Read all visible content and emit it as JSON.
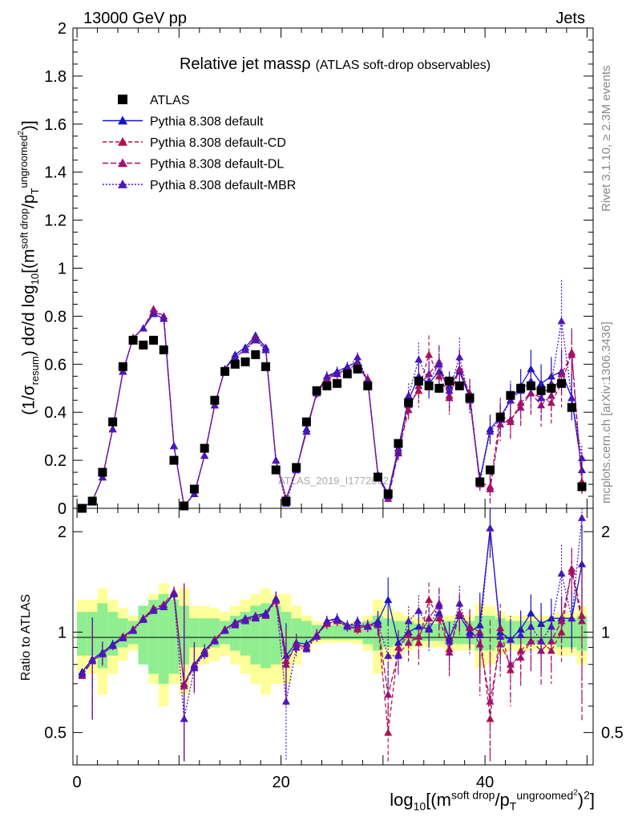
{
  "header": {
    "left": "13000 GeV pp",
    "right": "Jets"
  },
  "title": {
    "main": "Relative jet massρ",
    "sub": "(ATLAS soft-drop observables)"
  },
  "side_text": {
    "rivet": "Rivet 3.1.10, ≥ 2.3M events",
    "mcplots": "mcplots.cern.ch [arXiv:1306.3436]"
  },
  "watermark": "ATLAS_2019_I1772062",
  "axes": {
    "y_main": {
      "prefix": "(1/σ",
      "sub1": "resum",
      "mid": ") dσ/d log",
      "sub2": "10",
      "rest": "[(m",
      "sup1": "soft drop",
      "slash": "/p",
      "sub3": "T",
      "sup2": "ungroomed",
      "sq": "2",
      "end": ")]"
    },
    "x": {
      "prefix": "log",
      "sub": "10",
      "rest": "[(m",
      "sup1": "soft drop",
      "slash": "/p",
      "subT": "T",
      "sup2": "ungroomed",
      "sq": "2",
      "end": ")",
      "sup3": "2",
      "close": "]"
    },
    "y_ratio": "Ratio to ATLAS",
    "main_ticks": [
      "0",
      "0.2",
      "0.4",
      "0.6",
      "0.8",
      "1",
      "1.2",
      "1.4",
      "1.6",
      "1.8",
      "2"
    ],
    "ratio_ticks": [
      "0.5",
      "1",
      "2"
    ],
    "x_ticks": [
      "0",
      "20",
      "40"
    ]
  },
  "legend": [
    {
      "label": "ATLAS",
      "color": "#000000",
      "marker": "square",
      "dash": ""
    },
    {
      "label": "Pythia 8.308 default",
      "color": "#1515cc",
      "marker": "triangle",
      "dash": ""
    },
    {
      "label": "Pythia 8.308 default-CD",
      "color": "#b2124a",
      "marker": "triangle",
      "dash": "5,3"
    },
    {
      "label": "Pythia 8.308 default-DL",
      "color": "#a11070",
      "marker": "triangle",
      "dash": "7,3"
    },
    {
      "label": "Pythia 8.308 default-MBR",
      "color": "#4a16c0",
      "marker": "triangle",
      "dash": "2,2"
    }
  ],
  "chart_data": {
    "type": "line",
    "xlim": [
      -0.4,
      50.6
    ],
    "ylim_main": [
      0,
      2
    ],
    "ylim_ratio": [
      0.4,
      2.35
    ],
    "ratio_log_scale": true,
    "x": [
      0.5,
      1.5,
      2.5,
      3.5,
      4.5,
      5.5,
      6.5,
      7.5,
      8.5,
      9.5,
      10.5,
      11.5,
      12.5,
      13.5,
      14.5,
      15.5,
      16.5,
      17.5,
      18.5,
      19.5,
      20.5,
      21.5,
      22.5,
      23.5,
      24.5,
      25.5,
      26.5,
      27.5,
      28.5,
      29.5,
      30.5,
      31.5,
      32.5,
      33.5,
      34.5,
      35.5,
      36.5,
      37.5,
      38.5,
      39.5,
      40.5,
      41.5,
      42.5,
      43.5,
      44.5,
      45.5,
      46.5,
      47.5,
      48.5,
      49.5
    ],
    "data": {
      "name": "ATLAS",
      "values": [
        0.0,
        0.03,
        0.15,
        0.36,
        0.59,
        0.7,
        0.68,
        0.7,
        0.66,
        0.2,
        0.01,
        0.08,
        0.25,
        0.45,
        0.57,
        0.6,
        0.61,
        0.64,
        0.59,
        0.16,
        0.03,
        0.17,
        0.36,
        0.49,
        0.51,
        0.52,
        0.56,
        0.58,
        0.51,
        0.13,
        0.06,
        0.27,
        0.44,
        0.53,
        0.51,
        0.5,
        0.53,
        0.51,
        0.46,
        0.11,
        0.16,
        0.38,
        0.47,
        0.5,
        0.51,
        0.49,
        0.5,
        0.52,
        0.42,
        0.09
      ],
      "total_unc": [
        0.25,
        0.25,
        0.35,
        0.25,
        0.18,
        0.12,
        0.12,
        0.3,
        0.4,
        0.3,
        0.35,
        0.2,
        0.2,
        0.18,
        0.15,
        0.2,
        0.25,
        0.3,
        0.35,
        0.3,
        0.3,
        0.2,
        0.12,
        0.08,
        0.07,
        0.07,
        0.07,
        0.08,
        0.12,
        0.25,
        0.18,
        0.15,
        0.12,
        0.1,
        0.1,
        0.1,
        0.12,
        0.12,
        0.12,
        0.22,
        0.2,
        0.15,
        0.12,
        0.12,
        0.12,
        0.12,
        0.12,
        0.15,
        0.15,
        0.2
      ],
      "stat_unc": [
        0.15,
        0.15,
        0.22,
        0.15,
        0.1,
        0.08,
        0.2,
        0.25,
        0.3,
        0.25,
        0.2,
        0.1,
        0.1,
        0.1,
        0.08,
        0.12,
        0.15,
        0.2,
        0.22,
        0.2,
        0.15,
        0.1,
        0.08,
        0.05,
        0.05,
        0.05,
        0.05,
        0.05,
        0.08,
        0.12,
        0.1,
        0.08,
        0.08,
        0.06,
        0.06,
        0.06,
        0.08,
        0.08,
        0.08,
        0.12,
        0.12,
        0.1,
        0.08,
        0.08,
        0.08,
        0.08,
        0.08,
        0.1,
        0.1,
        0.12
      ]
    },
    "series": [
      {
        "name": "Pythia 8.308 default",
        "color": "#1515cc",
        "dash": "",
        "values": [
          0.0,
          0.03,
          0.13,
          0.33,
          0.57,
          0.71,
          0.75,
          0.81,
          0.79,
          0.26,
          0.01,
          0.06,
          0.22,
          0.43,
          0.58,
          0.64,
          0.67,
          0.72,
          0.67,
          0.2,
          0.04,
          0.16,
          0.33,
          0.48,
          0.55,
          0.57,
          0.59,
          0.61,
          0.53,
          0.14,
          0.06,
          0.25,
          0.45,
          0.55,
          0.52,
          0.57,
          0.51,
          0.57,
          0.46,
          0.12,
          0.33,
          0.38,
          0.45,
          0.51,
          0.58,
          0.52,
          0.55,
          0.57,
          0.46,
          0.16
        ],
        "ratio": [
          0.76,
          0.83,
          0.87,
          0.92,
          0.97,
          1.02,
          1.1,
          1.16,
          1.19,
          1.3,
          0.7,
          0.8,
          0.88,
          0.95,
          1.02,
          1.07,
          1.1,
          1.12,
          1.14,
          1.26,
          0.85,
          0.93,
          0.92,
          0.98,
          1.08,
          1.1,
          1.05,
          1.05,
          1.04,
          1.08,
          1.25,
          0.93,
          1.0,
          1.04,
          1.02,
          1.14,
          0.96,
          1.12,
          1.0,
          1.05,
          2.05,
          1.0,
          0.95,
          1.02,
          1.14,
          1.06,
          1.1,
          1.1,
          1.1,
          1.6
        ],
        "err": [
          0.01,
          0.01,
          0.01,
          0.01,
          0.01,
          0.01,
          0.01,
          0.01,
          0.01,
          0.01,
          0.01,
          0.01,
          0.01,
          0.01,
          0.01,
          0.01,
          0.01,
          0.01,
          0.01,
          0.01,
          0.01,
          0.01,
          0.01,
          0.02,
          0.02,
          0.02,
          0.02,
          0.02,
          0.02,
          0.01,
          0.01,
          0.02,
          0.04,
          0.06,
          0.06,
          0.06,
          0.06,
          0.06,
          0.05,
          0.03,
          0.06,
          0.06,
          0.07,
          0.07,
          0.08,
          0.08,
          0.08,
          0.09,
          0.09,
          0.05
        ]
      },
      {
        "name": "Pythia 8.308 default-CD",
        "color": "#b2124a",
        "dash": "5,3",
        "values": [
          0.0,
          0.03,
          0.13,
          0.33,
          0.57,
          0.71,
          0.75,
          0.82,
          0.8,
          0.26,
          0.01,
          0.06,
          0.22,
          0.43,
          0.58,
          0.63,
          0.66,
          0.71,
          0.66,
          0.2,
          0.04,
          0.16,
          0.32,
          0.48,
          0.55,
          0.56,
          0.58,
          0.59,
          0.54,
          0.14,
          0.05,
          0.24,
          0.43,
          0.49,
          0.64,
          0.55,
          0.47,
          0.58,
          0.48,
          0.11,
          0.09,
          0.39,
          0.36,
          0.44,
          0.48,
          0.46,
          0.44,
          0.52,
          0.65,
          0.11
        ],
        "ratio": [
          0.75,
          0.82,
          0.86,
          0.91,
          0.97,
          1.02,
          1.1,
          1.17,
          1.21,
          1.31,
          0.7,
          0.79,
          0.87,
          0.95,
          1.02,
          1.06,
          1.09,
          1.11,
          1.13,
          1.25,
          0.82,
          0.92,
          0.9,
          0.98,
          1.07,
          1.08,
          1.04,
          1.02,
          1.05,
          1.06,
          0.5,
          0.9,
          0.98,
          0.93,
          1.25,
          1.1,
          0.89,
          1.14,
          1.04,
          1.0,
          0.55,
          1.03,
          0.77,
          0.88,
          0.94,
          0.94,
          0.88,
          1.0,
          1.55,
          1.12
        ],
        "err": [
          0.01,
          0.01,
          0.01,
          0.01,
          0.01,
          0.01,
          0.01,
          0.01,
          0.01,
          0.01,
          0.01,
          0.01,
          0.01,
          0.01,
          0.01,
          0.01,
          0.01,
          0.01,
          0.01,
          0.01,
          0.01,
          0.01,
          0.01,
          0.02,
          0.02,
          0.02,
          0.02,
          0.02,
          0.02,
          0.01,
          0.01,
          0.03,
          0.05,
          0.07,
          0.08,
          0.07,
          0.07,
          0.08,
          0.06,
          0.03,
          0.06,
          0.07,
          0.08,
          0.08,
          0.09,
          0.09,
          0.09,
          0.1,
          0.1,
          0.05
        ]
      },
      {
        "name": "Pythia 8.308 default-DL",
        "color": "#a11070",
        "dash": "7,3",
        "values": [
          0.0,
          0.03,
          0.13,
          0.33,
          0.57,
          0.71,
          0.75,
          0.83,
          0.8,
          0.26,
          0.01,
          0.06,
          0.22,
          0.43,
          0.58,
          0.63,
          0.66,
          0.71,
          0.66,
          0.2,
          0.04,
          0.16,
          0.32,
          0.48,
          0.54,
          0.56,
          0.58,
          0.6,
          0.53,
          0.14,
          0.04,
          0.23,
          0.41,
          0.51,
          0.56,
          0.61,
          0.46,
          0.58,
          0.47,
          0.1,
          0.08,
          0.35,
          0.37,
          0.42,
          0.48,
          0.43,
          0.47,
          0.56,
          0.64,
          0.1
        ],
        "ratio": [
          0.74,
          0.82,
          0.86,
          0.91,
          0.96,
          1.02,
          1.1,
          1.18,
          1.21,
          1.32,
          0.69,
          0.79,
          0.87,
          0.95,
          1.02,
          1.06,
          1.09,
          1.11,
          1.12,
          1.24,
          0.8,
          0.92,
          0.9,
          0.98,
          1.06,
          1.08,
          1.04,
          1.03,
          1.04,
          1.05,
          0.65,
          0.86,
          0.93,
          0.97,
          1.1,
          1.22,
          0.87,
          1.14,
          1.03,
          0.92,
          0.62,
          0.92,
          0.8,
          0.84,
          0.94,
          0.88,
          0.94,
          1.08,
          1.52,
          1.08
        ],
        "err": [
          0.01,
          0.01,
          0.01,
          0.01,
          0.01,
          0.01,
          0.01,
          0.01,
          0.01,
          0.01,
          0.01,
          0.01,
          0.01,
          0.01,
          0.01,
          0.01,
          0.01,
          0.01,
          0.01,
          0.01,
          0.01,
          0.01,
          0.01,
          0.02,
          0.02,
          0.02,
          0.02,
          0.02,
          0.02,
          0.01,
          0.01,
          0.03,
          0.05,
          0.07,
          0.08,
          0.07,
          0.07,
          0.08,
          0.06,
          0.03,
          0.06,
          0.07,
          0.08,
          0.08,
          0.09,
          0.09,
          0.09,
          0.1,
          0.1,
          0.05
        ]
      },
      {
        "name": "Pythia 8.308 default-MBR",
        "color": "#4a16c0",
        "dash": "2,2",
        "values": [
          0.0,
          0.03,
          0.13,
          0.33,
          0.57,
          0.71,
          0.75,
          0.81,
          0.79,
          0.26,
          0.01,
          0.06,
          0.22,
          0.43,
          0.58,
          0.63,
          0.66,
          0.7,
          0.66,
          0.2,
          0.02,
          0.16,
          0.32,
          0.48,
          0.55,
          0.56,
          0.58,
          0.63,
          0.53,
          0.14,
          0.05,
          0.23,
          0.47,
          0.62,
          0.53,
          0.6,
          0.49,
          0.63,
          0.45,
          0.11,
          0.32,
          0.37,
          0.45,
          0.49,
          0.53,
          0.46,
          0.52,
          0.78,
          0.46,
          0.21
        ],
        "ratio": [
          0.75,
          0.82,
          0.86,
          0.91,
          0.96,
          1.01,
          1.09,
          1.16,
          1.19,
          1.3,
          0.55,
          0.78,
          0.86,
          0.94,
          1.01,
          1.05,
          1.08,
          1.1,
          1.13,
          1.26,
          0.62,
          0.9,
          0.89,
          0.97,
          1.08,
          1.09,
          1.04,
          1.08,
          1.04,
          1.06,
          0.85,
          0.85,
          1.08,
          1.16,
          1.03,
          1.2,
          0.94,
          1.22,
          0.98,
          0.98,
          2.05,
          0.97,
          0.95,
          0.98,
          1.04,
          0.94,
          1.04,
          1.5,
          1.1,
          2.2
        ],
        "err": [
          0.01,
          0.01,
          0.01,
          0.01,
          0.01,
          0.01,
          0.01,
          0.01,
          0.01,
          0.01,
          0.01,
          0.01,
          0.01,
          0.01,
          0.01,
          0.01,
          0.01,
          0.01,
          0.01,
          0.01,
          0.01,
          0.01,
          0.01,
          0.02,
          0.02,
          0.02,
          0.02,
          0.02,
          0.02,
          0.01,
          0.01,
          0.03,
          0.05,
          0.07,
          0.08,
          0.07,
          0.07,
          0.08,
          0.06,
          0.03,
          0.06,
          0.07,
          0.08,
          0.08,
          0.09,
          0.09,
          0.09,
          0.17,
          0.1,
          0.05
        ]
      }
    ]
  }
}
